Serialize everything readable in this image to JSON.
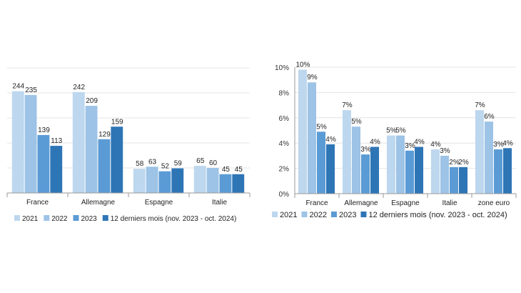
{
  "chart_data": [
    {
      "type": "bar",
      "categories": [
        "France",
        "Allemagne",
        "Espagne",
        "Italie"
      ],
      "series": [
        {
          "name": "2021",
          "values": [
            244,
            242,
            58,
            65
          ],
          "color": "#bdd7ee"
        },
        {
          "name": "2022",
          "values": [
            235,
            209,
            63,
            60
          ],
          "color": "#9dc3e6"
        },
        {
          "name": "2023",
          "values": [
            139,
            129,
            52,
            45
          ],
          "color": "#5b9bd5"
        },
        {
          "name": "12 derniers mois (nov. 2023 - oct. 2024)",
          "values": [
            113,
            159,
            59,
            45
          ],
          "color": "#2e75b6"
        }
      ],
      "data_labels": [
        [
          "244",
          "242",
          "58",
          "65"
        ],
        [
          "235",
          "209",
          "63",
          "60"
        ],
        [
          "139",
          "129",
          "52",
          "45"
        ],
        [
          "113",
          "159",
          "59",
          "45"
        ]
      ],
      "ylim": [
        0,
        300
      ],
      "y_axis_shown": false,
      "grid": true,
      "legend": "bottom"
    },
    {
      "type": "bar",
      "categories": [
        "France",
        "Allemagne",
        "Espagne",
        "Italie",
        "zone euro"
      ],
      "series": [
        {
          "name": "2021",
          "values": [
            9.8,
            6.6,
            4.6,
            3.5,
            6.6
          ],
          "color": "#bdd7ee"
        },
        {
          "name": "2022",
          "values": [
            8.8,
            5.3,
            4.6,
            3.0,
            5.7
          ],
          "color": "#9dc3e6"
        },
        {
          "name": "2023",
          "values": [
            4.9,
            3.1,
            3.4,
            2.1,
            3.5
          ],
          "color": "#5b9bd5"
        },
        {
          "name": "12 derniers mois (nov. 2023 - oct. 2024)",
          "values": [
            3.9,
            3.7,
            3.7,
            2.1,
            3.6
          ],
          "color": "#2e75b6"
        }
      ],
      "data_labels": [
        [
          "10%",
          "7%",
          "5%",
          "4%",
          "7%"
        ],
        [
          "9%",
          "5%",
          "5%",
          "3%",
          "6%"
        ],
        [
          "5%",
          "3%",
          "3%",
          "2%",
          "3%"
        ],
        [
          "4%",
          "4%",
          "4%",
          "2%",
          "4%"
        ]
      ],
      "yticks": [
        "0%",
        "2%",
        "4%",
        "6%",
        "8%",
        "10%"
      ],
      "ylim": [
        0,
        10
      ],
      "grid": true,
      "legend": "bottom"
    }
  ]
}
